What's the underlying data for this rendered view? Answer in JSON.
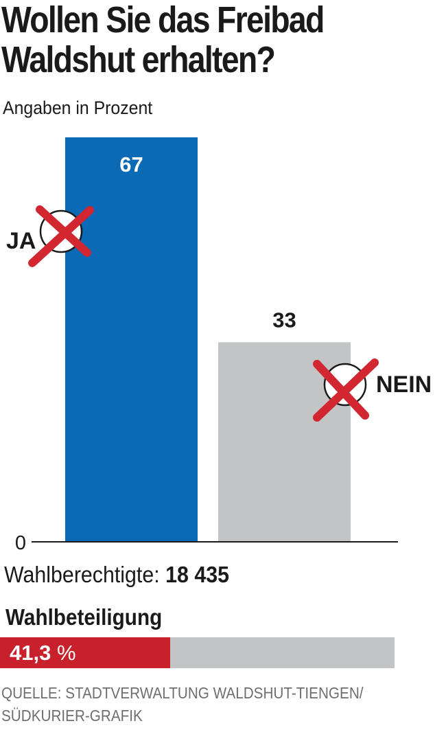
{
  "title_line1": "Wollen Sie das Freibad",
  "title_line2": "Waldshut erhalten?",
  "subtitle": "Angaben in Prozent",
  "chart_data": {
    "type": "bar",
    "categories": [
      "JA",
      "NEIN"
    ],
    "values": [
      67,
      33
    ],
    "value_labels": [
      "67",
      "33"
    ],
    "colors": [
      "#0a6ab6",
      "#c3c4c6"
    ],
    "ylim": [
      0,
      67
    ],
    "axis_tick_label": "0"
  },
  "voters": {
    "label": "Wahlberechtigte:",
    "value": "18 435"
  },
  "turnout": {
    "label": "Wahlbeteiligung",
    "value": "41,3",
    "unit": "%",
    "fraction": 0.413,
    "color": "#c8212b"
  },
  "source_line1": "QUELLE: STADTVERWALTUNG WALDSHUT-TIENGEN/",
  "source_line2": "SÜDKURIER-GRAFIK"
}
